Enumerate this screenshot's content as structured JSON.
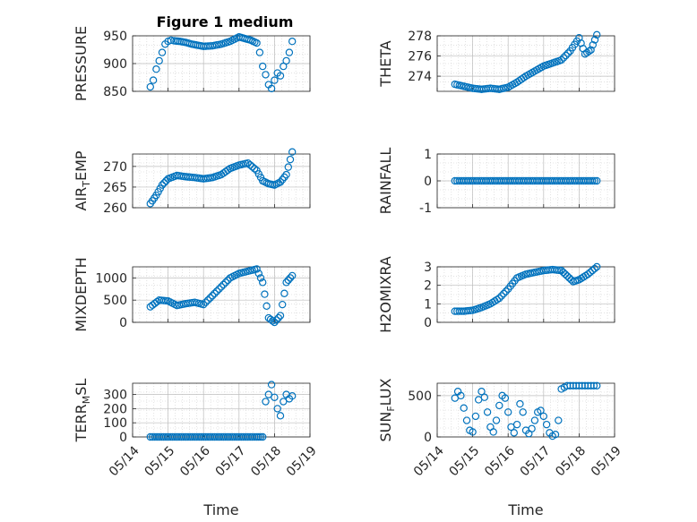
{
  "title": "Figure 1 medium",
  "chart_data": [
    {
      "type": "scatter",
      "name": "pressure-chart",
      "ylabel_html": [
        "PRESSURE"
      ],
      "xlabel": "",
      "xlim": [
        "05/14",
        "05/19"
      ],
      "ylim": [
        850,
        950
      ],
      "yticks": [
        850,
        900,
        950
      ],
      "xticks": [
        "05/14",
        "05/15",
        "05/16",
        "05/17",
        "05/18",
        "05/19"
      ],
      "series_color": "#0072BD",
      "x": [
        "05/14 12:00",
        "05/14 14:00",
        "05/14 16:00",
        "05/14 18:00",
        "05/14 20:00",
        "05/14 22:00",
        "05/15 00:00",
        "05/15 02:00",
        "05/15 04:00",
        "05/15 08:00",
        "05/15 12:00",
        "05/15 16:00",
        "05/15 20:00",
        "05/16 00:00",
        "05/16 06:00",
        "05/16 12:00",
        "05/16 18:00",
        "05/17 00:00",
        "05/17 04:00",
        "05/17 08:00",
        "05/17 12:00",
        "05/17 14:00",
        "05/17 16:00",
        "05/17 18:00",
        "05/17 20:00",
        "05/17 22:00",
        "05/18 00:00",
        "05/18 02:00",
        "05/18 04:00",
        "05/18 06:00",
        "05/18 08:00",
        "05/18 10:00",
        "05/18 12:00"
      ],
      "y": [
        858,
        870,
        890,
        905,
        920,
        935,
        940,
        942,
        941,
        940,
        938,
        935,
        933,
        931,
        932,
        935,
        940,
        948,
        945,
        942,
        937,
        920,
        895,
        880,
        862,
        855,
        870,
        883,
        878,
        895,
        905,
        920,
        940
      ]
    },
    {
      "type": "scatter",
      "name": "theta-chart",
      "ylabel_html": [
        "THETA"
      ],
      "xlabel": "",
      "xlim": [
        "05/14",
        "05/19"
      ],
      "ylim": [
        272.5,
        278
      ],
      "yticks": [
        274,
        276,
        278
      ],
      "xticks": [
        "05/14",
        "05/15",
        "05/16",
        "05/17",
        "05/18",
        "05/19"
      ],
      "series_color": "#0072BD",
      "x": [
        "05/14 12:00",
        "05/14 18:00",
        "05/15 00:00",
        "05/15 06:00",
        "05/15 12:00",
        "05/15 18:00",
        "05/16 00:00",
        "05/16 06:00",
        "05/16 12:00",
        "05/16 18:00",
        "05/17 00:00",
        "05/17 06:00",
        "05/17 12:00",
        "05/17 18:00",
        "05/18 00:00",
        "05/18 04:00",
        "05/18 08:00",
        "05/18 12:00"
      ],
      "y": [
        273.2,
        273.0,
        272.8,
        272.7,
        272.8,
        272.7,
        272.9,
        273.4,
        274.0,
        274.5,
        275.0,
        275.3,
        275.6,
        276.5,
        277.8,
        276.2,
        276.6,
        278.1
      ]
    },
    {
      "type": "scatter",
      "name": "air-temp-chart",
      "ylabel_html": [
        "AIR",
        "T",
        "EMP"
      ],
      "xlabel": "",
      "xlim": [
        "05/14",
        "05/19"
      ],
      "ylim": [
        260,
        273
      ],
      "yticks": [
        260,
        265,
        270
      ],
      "xticks": [
        "05/14",
        "05/15",
        "05/16",
        "05/17",
        "05/18",
        "05/19"
      ],
      "series_color": "#0072BD",
      "x": [
        "05/14 12:00",
        "05/14 16:00",
        "05/14 20:00",
        "05/15 00:00",
        "05/15 06:00",
        "05/15 12:00",
        "05/15 18:00",
        "05/16 00:00",
        "05/16 06:00",
        "05/16 12:00",
        "05/16 18:00",
        "05/17 00:00",
        "05/17 06:00",
        "05/17 12:00",
        "05/17 16:00",
        "05/17 20:00",
        "05/18 00:00",
        "05/18 04:00",
        "05/18 08:00",
        "05/18 12:00"
      ],
      "y": [
        261,
        263,
        265.5,
        267,
        267.8,
        267.5,
        267.3,
        267,
        267.3,
        268,
        269.5,
        270.3,
        270.8,
        269,
        266.5,
        265.8,
        265.5,
        266.2,
        268,
        273.5
      ]
    },
    {
      "type": "scatter",
      "name": "rainfall-chart",
      "ylabel_html": [
        "RAINFALL"
      ],
      "xlabel": "",
      "xlim": [
        "05/14",
        "05/19"
      ],
      "ylim": [
        -1,
        1
      ],
      "yticks": [
        -1,
        0,
        1
      ],
      "xticks": [
        "05/14",
        "05/15",
        "05/16",
        "05/17",
        "05/18",
        "05/19"
      ],
      "series_color": "#0072BD",
      "x": [
        "05/14 12:00",
        "05/15 00:00",
        "05/15 12:00",
        "05/16 00:00",
        "05/16 12:00",
        "05/17 00:00",
        "05/17 12:00",
        "05/18 00:00",
        "05/18 12:00"
      ],
      "y": [
        0,
        0,
        0,
        0,
        0,
        0,
        0,
        0,
        0
      ]
    },
    {
      "type": "scatter",
      "name": "mixdepth-chart",
      "ylabel_html": [
        "MIXDEPTH"
      ],
      "xlabel": "",
      "xlim": [
        "05/14",
        "05/19"
      ],
      "ylim": [
        0,
        1250
      ],
      "yticks": [
        0,
        500,
        1000
      ],
      "xticks": [
        "05/14",
        "05/15",
        "05/16",
        "05/17",
        "05/18",
        "05/19"
      ],
      "series_color": "#0072BD",
      "x": [
        "05/14 12:00",
        "05/14 18:00",
        "05/15 00:00",
        "05/15 06:00",
        "05/15 12:00",
        "05/15 18:00",
        "05/16 00:00",
        "05/16 06:00",
        "05/16 12:00",
        "05/16 18:00",
        "05/17 00:00",
        "05/17 06:00",
        "05/17 12:00",
        "05/17 16:00",
        "05/17 20:00",
        "05/18 00:00",
        "05/18 04:00",
        "05/18 08:00",
        "05/18 12:00"
      ],
      "y": [
        350,
        500,
        480,
        380,
        420,
        450,
        400,
        600,
        800,
        1000,
        1100,
        1150,
        1200,
        900,
        100,
        0,
        150,
        900,
        1050
      ]
    },
    {
      "type": "scatter",
      "name": "h2omixra-chart",
      "ylabel_html": [
        "H2OMIXRA"
      ],
      "xlabel": "",
      "xlim": [
        "05/14",
        "05/19"
      ],
      "ylim": [
        0,
        3
      ],
      "yticks": [
        0,
        1,
        2,
        3
      ],
      "xticks": [
        "05/14",
        "05/15",
        "05/16",
        "05/17",
        "05/18",
        "05/19"
      ],
      "series_color": "#0072BD",
      "x": [
        "05/14 12:00",
        "05/14 18:00",
        "05/15 00:00",
        "05/15 06:00",
        "05/15 12:00",
        "05/15 18:00",
        "05/16 00:00",
        "05/16 06:00",
        "05/16 12:00",
        "05/16 18:00",
        "05/17 00:00",
        "05/17 06:00",
        "05/17 12:00",
        "05/17 16:00",
        "05/17 20:00",
        "05/18 00:00",
        "05/18 06:00",
        "05/18 12:00"
      ],
      "y": [
        0.6,
        0.6,
        0.65,
        0.8,
        1.0,
        1.3,
        1.8,
        2.4,
        2.6,
        2.7,
        2.8,
        2.85,
        2.8,
        2.5,
        2.2,
        2.3,
        2.6,
        3.0
      ]
    },
    {
      "type": "scatter",
      "name": "terr-msl-chart",
      "ylabel_html": [
        "TERR",
        "M",
        "SL"
      ],
      "xlabel": "Time",
      "xlim": [
        "05/14",
        "05/19"
      ],
      "ylim": [
        0,
        380
      ],
      "yticks": [
        0,
        100,
        200,
        300
      ],
      "xticks": [
        "05/14",
        "05/15",
        "05/16",
        "05/17",
        "05/18",
        "05/19"
      ],
      "series_color": "#0072BD",
      "x": [
        "05/14 12:00",
        "05/15 00:00",
        "05/15 12:00",
        "05/16 00:00",
        "05/16 12:00",
        "05/17 00:00",
        "05/17 12:00",
        "05/17 16:00",
        "05/17 18:00",
        "05/17 20:00",
        "05/17 22:00",
        "05/18 00:00",
        "05/18 02:00",
        "05/18 04:00",
        "05/18 06:00",
        "05/18 08:00",
        "05/18 10:00",
        "05/18 12:00"
      ],
      "y": [
        0,
        0,
        0,
        0,
        0,
        0,
        0,
        0,
        250,
        300,
        370,
        280,
        200,
        150,
        250,
        300,
        270,
        290
      ]
    },
    {
      "type": "scatter",
      "name": "sun-flux-chart",
      "ylabel_html": [
        "SUN",
        "F",
        "LUX"
      ],
      "xlabel": "Time",
      "xlim": [
        "05/14",
        "05/19"
      ],
      "ylim": [
        0,
        650
      ],
      "yticks": [
        0,
        500
      ],
      "xticks": [
        "05/14",
        "05/15",
        "05/16",
        "05/17",
        "05/18",
        "05/19"
      ],
      "series_color": "#0072BD",
      "x": [
        "05/14 12:00",
        "05/14 14:00",
        "05/14 16:00",
        "05/14 18:00",
        "05/14 20:00",
        "05/14 22:00",
        "05/15 00:00",
        "05/15 02:00",
        "05/15 04:00",
        "05/15 06:00",
        "05/15 08:00",
        "05/15 10:00",
        "05/15 12:00",
        "05/15 14:00",
        "05/15 16:00",
        "05/15 18:00",
        "05/15 20:00",
        "05/15 22:00",
        "05/16 00:00",
        "05/16 02:00",
        "05/16 04:00",
        "05/16 06:00",
        "05/16 08:00",
        "05/16 10:00",
        "05/16 12:00",
        "05/16 14:00",
        "05/16 16:00",
        "05/16 18:00",
        "05/16 20:00",
        "05/16 22:00",
        "05/17 00:00",
        "05/17 02:00",
        "05/17 04:00",
        "05/17 06:00",
        "05/17 08:00",
        "05/17 10:00",
        "05/17 12:00",
        "05/17 14:00",
        "05/17 16:00",
        "05/17 18:00",
        "05/17 20:00",
        "05/17 22:00",
        "05/18 00:00",
        "05/18 02:00",
        "05/18 04:00",
        "05/18 06:00",
        "05/18 08:00",
        "05/18 10:00",
        "05/18 12:00"
      ],
      "y": [
        470,
        550,
        500,
        350,
        200,
        80,
        60,
        250,
        450,
        550,
        480,
        300,
        120,
        60,
        200,
        380,
        500,
        470,
        300,
        120,
        50,
        150,
        400,
        300,
        80,
        40,
        100,
        200,
        300,
        320,
        250,
        150,
        50,
        10,
        30,
        200,
        580,
        600,
        620,
        620,
        620,
        620,
        620,
        620,
        620,
        620,
        620,
        620,
        620
      ]
    }
  ]
}
